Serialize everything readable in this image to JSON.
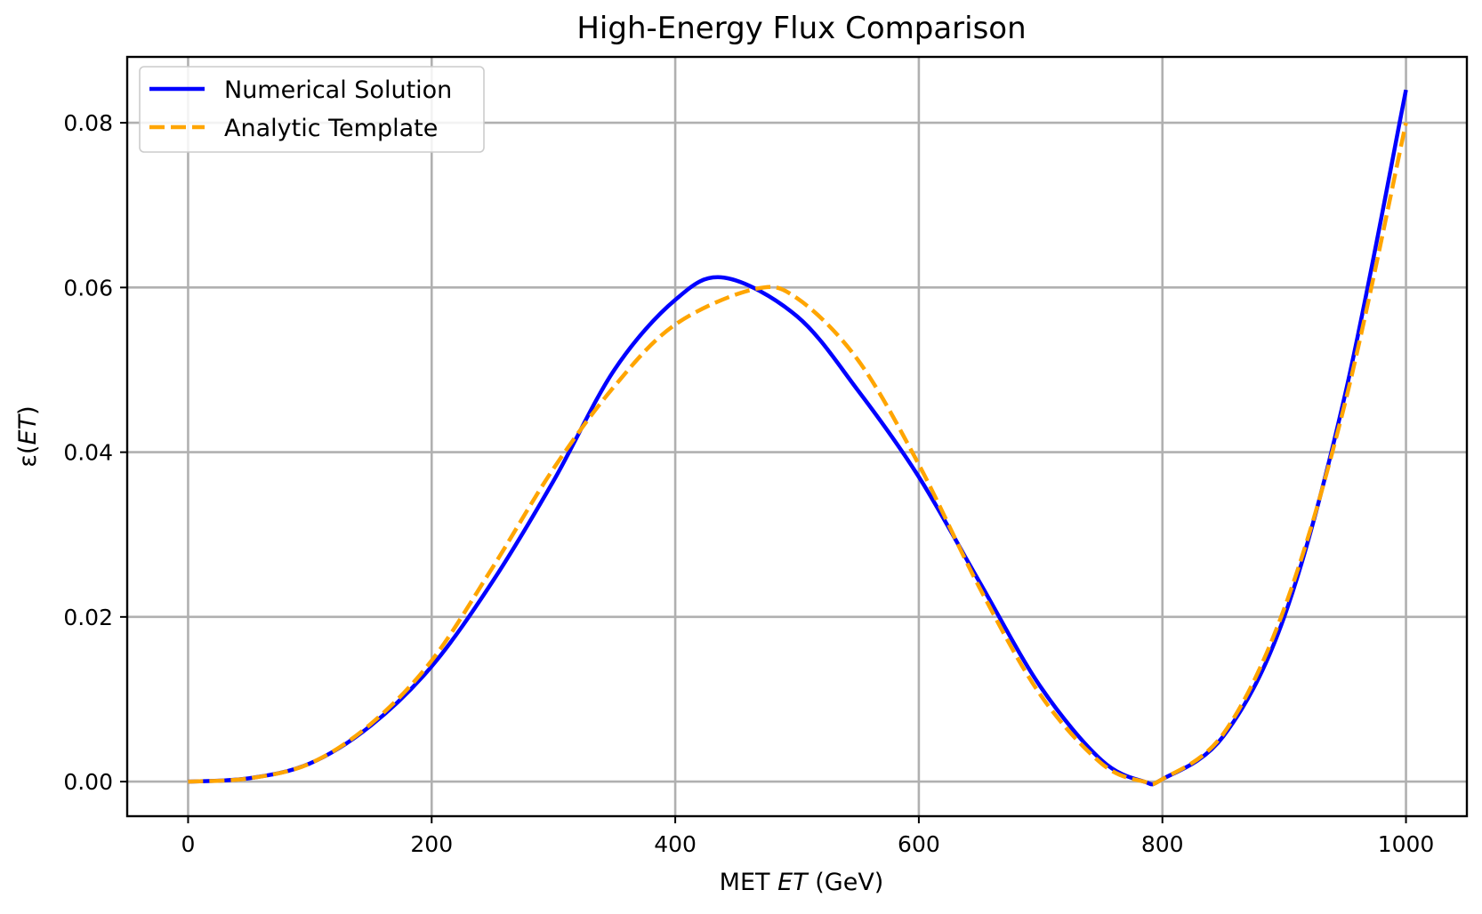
{
  "chart_data": {
    "type": "line",
    "title": "High-Energy Flux Comparison",
    "xlabel": {
      "prefix": "MET ",
      "italic": "ET",
      "suffix": " (GeV)"
    },
    "ylabel": {
      "prefix": "ε(",
      "italic": "ET",
      "suffix": ")"
    },
    "xlim": [
      -50,
      1050
    ],
    "ylim": [
      -0.0042,
      0.088
    ],
    "xticks": [
      0,
      200,
      400,
      600,
      800,
      1000
    ],
    "xtick_labels": [
      "0",
      "200",
      "400",
      "600",
      "800",
      "1000"
    ],
    "yticks": [
      0.0,
      0.02,
      0.04,
      0.06,
      0.08
    ],
    "ytick_labels": [
      "0.00",
      "0.02",
      "0.04",
      "0.06",
      "0.08"
    ],
    "grid": true,
    "legend_position": "top-left",
    "series": [
      {
        "name": "Numerical Solution",
        "color": "#0000ff",
        "dash": "solid",
        "x": [
          0,
          50,
          100,
          150,
          200,
          250,
          300,
          350,
          400,
          440,
          500,
          550,
          600,
          650,
          700,
          750,
          785,
          800,
          850,
          900,
          950,
          1000
        ],
        "y": [
          0.0,
          0.0004,
          0.0022,
          0.0068,
          0.014,
          0.0243,
          0.0365,
          0.05,
          0.0585,
          0.0612,
          0.0565,
          0.0475,
          0.037,
          0.0242,
          0.0115,
          0.0026,
          0.0,
          0.0003,
          0.0055,
          0.02,
          0.047,
          0.084
        ]
      },
      {
        "name": "Analytic Template",
        "color": "#ffa500",
        "dash": "dashed",
        "x": [
          0,
          50,
          100,
          150,
          200,
          250,
          300,
          350,
          400,
          465,
          500,
          550,
          600,
          650,
          700,
          750,
          785,
          800,
          850,
          900,
          950,
          1000
        ],
        "y": [
          0.0,
          0.0004,
          0.0022,
          0.007,
          0.0147,
          0.026,
          0.038,
          0.048,
          0.0555,
          0.0598,
          0.0587,
          0.0512,
          0.0385,
          0.0235,
          0.0105,
          0.0022,
          0.0,
          0.0003,
          0.0058,
          0.021,
          0.046,
          0.08
        ]
      }
    ]
  }
}
